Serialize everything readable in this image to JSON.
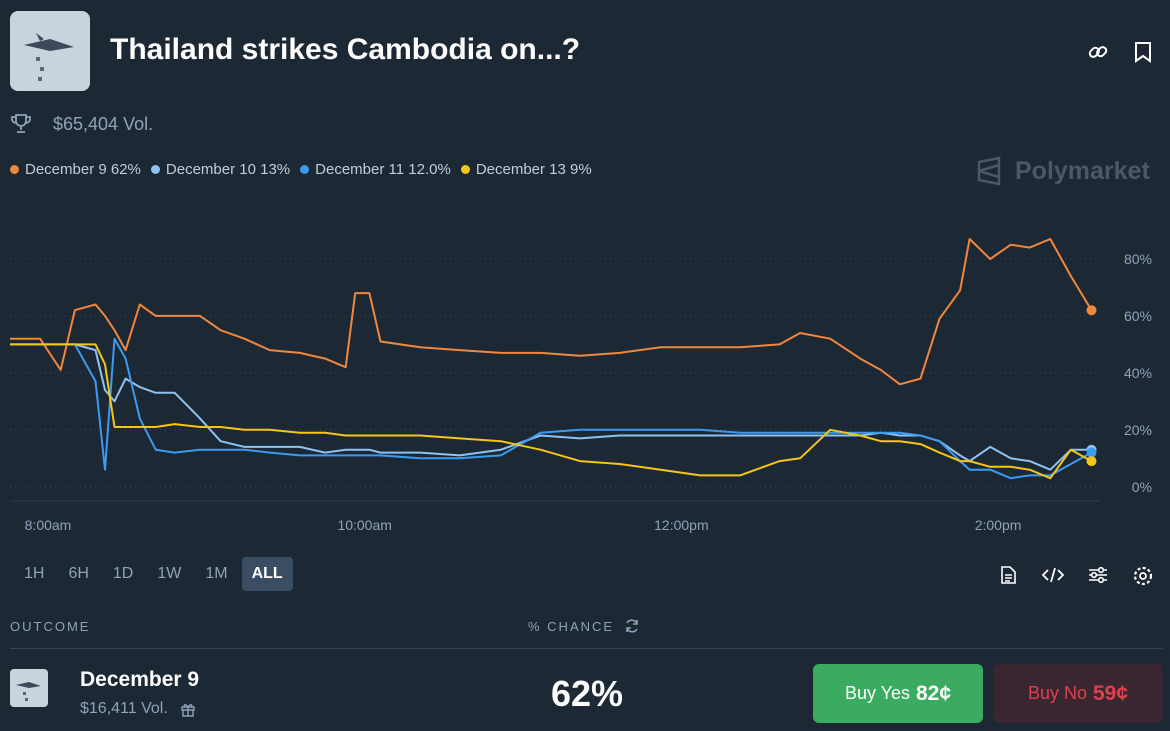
{
  "header": {
    "title": "Thailand strikes Cambodia on...?",
    "volume": "$65,404 Vol."
  },
  "brand": "Polymarket",
  "chart_data": {
    "type": "line",
    "x": [
      7.76,
      7.95,
      8.08,
      8.17,
      8.3,
      8.36,
      8.42,
      8.49,
      8.58,
      8.68,
      8.8,
      8.96,
      9.09,
      9.24,
      9.4,
      9.59,
      9.75,
      9.88,
      9.94,
      10.03,
      10.1,
      10.35,
      10.6,
      10.86,
      11.11,
      11.36,
      11.61,
      11.87,
      12.12,
      12.37,
      12.62,
      12.75,
      12.94,
      13.13,
      13.26,
      13.38,
      13.51,
      13.63,
      13.76,
      13.82,
      13.95,
      14.08,
      14.2,
      14.33,
      14.46,
      14.59
    ],
    "series": [
      {
        "name": "December 9",
        "value_label": "62%",
        "color": "#f0873c",
        "values": [
          52,
          52,
          41,
          62,
          64,
          60,
          55,
          48,
          64,
          60,
          60,
          60,
          55,
          52,
          48,
          47,
          45,
          42,
          68,
          68,
          51,
          49,
          48,
          47,
          47,
          46,
          47,
          49,
          49,
          49,
          50,
          54,
          52,
          45,
          41,
          36,
          38,
          59,
          69,
          87,
          80,
          85,
          84,
          87,
          74,
          62
        ]
      },
      {
        "name": "December 10",
        "value_label": "13%",
        "color": "#8ec2f2",
        "values": [
          50,
          50,
          50,
          50,
          48,
          34,
          30,
          38,
          35,
          33,
          33,
          24,
          16,
          14,
          14,
          14,
          12,
          13,
          13,
          13,
          12,
          12,
          11,
          13,
          18,
          17,
          18,
          18,
          18,
          18,
          18,
          18,
          18,
          18,
          19,
          18,
          18,
          16,
          11,
          9,
          14,
          10,
          9,
          6,
          13,
          13
        ]
      },
      {
        "name": "December 11",
        "value_label": "12.0%",
        "color": "#3a9bf0",
        "values": [
          50,
          50,
          50,
          50,
          37,
          6,
          52,
          45,
          24,
          13,
          12,
          13,
          13,
          13,
          12,
          11,
          11,
          11,
          11,
          11,
          11,
          10,
          10,
          11,
          19,
          20,
          20,
          20,
          20,
          19,
          19,
          19,
          19,
          19,
          19,
          19,
          18,
          16,
          9,
          6,
          6,
          3,
          4,
          4,
          8,
          12
        ]
      },
      {
        "name": "December 13",
        "value_label": "9%",
        "color": "#f5c518",
        "values": [
          50,
          50,
          50,
          50,
          50,
          43,
          21,
          21,
          21,
          21,
          22,
          21,
          21,
          20,
          20,
          19,
          19,
          18,
          18,
          18,
          18,
          18,
          17,
          16,
          13,
          9,
          8,
          6,
          4,
          4,
          9,
          10,
          20,
          18,
          16,
          16,
          15,
          12,
          9,
          9,
          7,
          7,
          6,
          3,
          13,
          9
        ]
      }
    ],
    "xlim": [
      7.76,
      14.65
    ],
    "xticks": [
      {
        "value": 8,
        "label": "8:00am"
      },
      {
        "value": 10,
        "label": "10:00am"
      },
      {
        "value": 12,
        "label": "12:00pm"
      },
      {
        "value": 14,
        "label": "2:00pm"
      }
    ],
    "ylim": [
      -5,
      90
    ],
    "yticks": [
      {
        "value": 0,
        "label": "0%"
      },
      {
        "value": 20,
        "label": "20%"
      },
      {
        "value": 40,
        "label": "40%"
      },
      {
        "value": 60,
        "label": "60%"
      },
      {
        "value": 80,
        "label": "80%"
      }
    ],
    "grid": true
  },
  "ranges": [
    "1H",
    "6H",
    "1D",
    "1W",
    "1M",
    "ALL"
  ],
  "active_range": "ALL",
  "table": {
    "headers": [
      "OUTCOME",
      "% CHANCE"
    ],
    "rows": [
      {
        "name": "December 9",
        "volume": "$16,411 Vol.",
        "chance": "62%",
        "yes": {
          "label": "Buy Yes",
          "price": "82¢"
        },
        "no": {
          "label": "Buy No",
          "price": "59¢"
        }
      }
    ]
  }
}
